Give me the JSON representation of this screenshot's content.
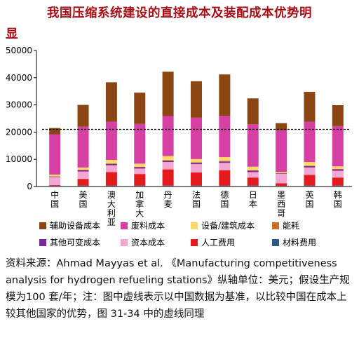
{
  "title_line1": "我国压缩系统建设的直接成本及装配成本优势明",
  "title_line2": "显",
  "source_text": "资料来源：Ahmad Mayyas et al. 《Manufacturing competitiveness analysis for hydrogen refueling stations》纵轴单位：美元；假设生产规模为100 套/年；注：图中虚线表示以中国数据为基准，以比较中国在成本上较其他国家的优势，图 31-34 中的虚线同理",
  "chart_data": {
    "type": "bar",
    "stacked": true,
    "categories": [
      "中国",
      "美国",
      "澳大利亚",
      "加拿大",
      "丹麦",
      "法国",
      "德国",
      "日本",
      "墨西哥",
      "英国",
      "韩国"
    ],
    "ylim": [
      0,
      50000
    ],
    "yticks": [
      0,
      10000,
      20000,
      30000,
      40000,
      50000
    ],
    "reference_line": 21000,
    "legend_position": "bottom",
    "series": [
      {
        "name": "材料费用",
        "color": "#2e5a88",
        "values": [
          200,
          300,
          300,
          300,
          300,
          300,
          300,
          300,
          200,
          300,
          300
        ]
      },
      {
        "name": "人工费用",
        "color": "#e41a1c",
        "values": [
          300,
          2500,
          5000,
          4300,
          6000,
          4900,
          5700,
          3000,
          1000,
          4000,
          3000
        ]
      },
      {
        "name": "资本成本",
        "color": "#f4a6d2",
        "values": [
          3000,
          2700,
          2500,
          2000,
          2700,
          3000,
          2700,
          2000,
          3500,
          2700,
          2500
        ]
      },
      {
        "name": "其他可变成本",
        "color": "#7b2a9c",
        "values": [
          200,
          500,
          500,
          500,
          500,
          500,
          500,
          500,
          200,
          500,
          500
        ]
      },
      {
        "name": "能耗",
        "color": "#c8702a",
        "values": [
          100,
          200,
          200,
          200,
          200,
          200,
          200,
          200,
          100,
          200,
          200
        ]
      },
      {
        "name": "设备/建筑成本",
        "color": "#ffd966",
        "values": [
          600,
          800,
          1300,
          1100,
          1500,
          1200,
          1400,
          1300,
          400,
          1300,
          900
        ]
      },
      {
        "name": "废料成本",
        "color": "#d63fa3",
        "values": [
          14800,
          15000,
          14000,
          14600,
          14700,
          15200,
          15200,
          15600,
          15300,
          14800,
          14800
        ]
      },
      {
        "name": "辅助设备成本",
        "color": "#8b4513",
        "values": [
          2300,
          8000,
          14500,
          11500,
          16300,
          13400,
          15200,
          9500,
          2600,
          11000,
          7700
        ]
      }
    ]
  },
  "legend_order": [
    "辅助设备成本",
    "废料成本",
    "设备/建筑成本",
    "能耗",
    "其他可变成本",
    "资本成本",
    "人工费用",
    "材料费用"
  ]
}
